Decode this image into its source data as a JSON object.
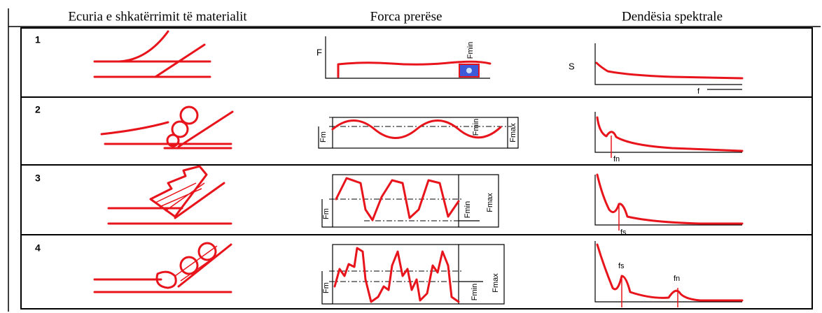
{
  "table": {
    "headers": [
      "Ecuria e shkatërrimit të materialit",
      "Forca prerëse",
      "Dendësia spektrale"
    ],
    "rows": [
      {
        "number": "1",
        "force_labels": [
          "F",
          "Fmin"
        ],
        "spectrum_labels": [
          "S",
          "f"
        ]
      },
      {
        "number": "2",
        "force_labels": [
          "Fm",
          "Fmin",
          "Fmax"
        ],
        "spectrum_labels": [
          "fn"
        ]
      },
      {
        "number": "3",
        "force_labels": [
          "Fm",
          "Fmin",
          "Fmax"
        ],
        "spectrum_labels": [
          "fs"
        ]
      },
      {
        "number": "4",
        "force_labels": [
          "Fm",
          "Fmin",
          "Fmax"
        ],
        "spectrum_labels": [
          "fs",
          "fn"
        ]
      }
    ]
  }
}
